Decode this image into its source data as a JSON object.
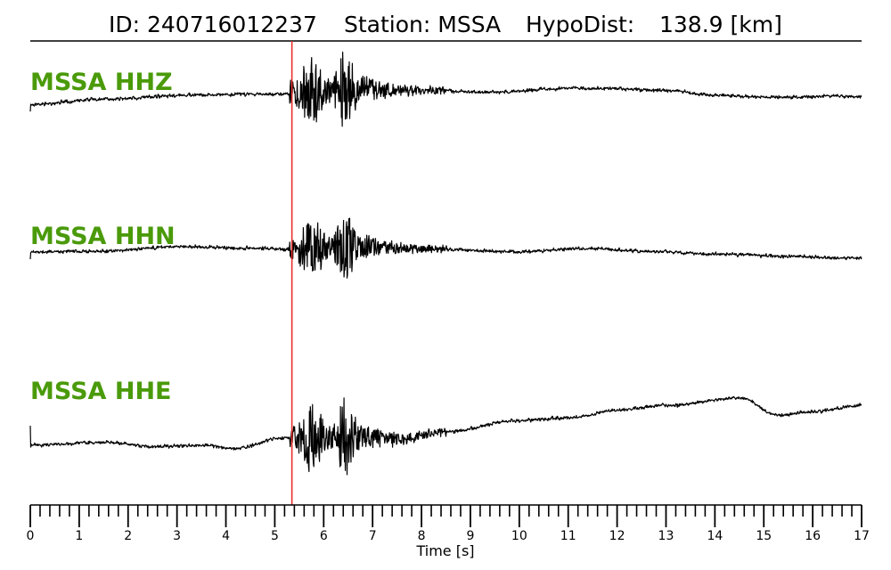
{
  "header": {
    "id_label": "ID: 240716012237",
    "station_label": "Station: MSSA",
    "hypodist_label": "HypoDist:",
    "hypodist_value": "138.9 [km]"
  },
  "chart_data": {
    "type": "line",
    "xlabel": "Time [s]",
    "xlim": [
      0,
      17
    ],
    "x_tick_labels": [
      "0",
      "1",
      "2",
      "3",
      "4",
      "5",
      "6",
      "7",
      "8",
      "9",
      "10",
      "11",
      "12",
      "13",
      "14",
      "15",
      "16",
      "17"
    ],
    "minor_tick_step": 0.2,
    "pick_time": 5.35,
    "label_color": "#4a9a0a",
    "pick_color": "#e8302a",
    "trace_color": "#000000",
    "series": [
      {
        "name": "MSSA HHZ",
        "envelope": [
          [
            0,
            0.6
          ],
          [
            1.5,
            0.1
          ],
          [
            3.5,
            -0.3
          ],
          [
            5.3,
            -0.4
          ],
          [
            5.6,
            -0.5
          ],
          [
            6.8,
            -0.8
          ],
          [
            8,
            -0.7
          ],
          [
            9.5,
            -0.55
          ],
          [
            11,
            -0.9
          ],
          [
            11.8,
            -0.9
          ],
          [
            13,
            -0.7
          ],
          [
            14,
            -0.25
          ],
          [
            15.5,
            -0.05
          ],
          [
            16.5,
            -0.2
          ],
          [
            17,
            -0.08
          ]
        ]
      },
      {
        "name": "MSSA HHN",
        "envelope": [
          [
            0,
            0.1
          ],
          [
            1.5,
            0.0
          ],
          [
            3,
            -0.5
          ],
          [
            4.5,
            -0.35
          ],
          [
            5.3,
            -0.2
          ],
          [
            6.8,
            -0.55
          ],
          [
            8,
            -0.25
          ],
          [
            10,
            0.05
          ],
          [
            11.4,
            -0.3
          ],
          [
            12.5,
            0.0
          ],
          [
            14,
            0.35
          ],
          [
            15.5,
            0.55
          ],
          [
            16.5,
            0.75
          ],
          [
            17,
            0.75
          ]
        ]
      },
      {
        "name": "MSSA HHE",
        "envelope": [
          [
            0,
            0.0
          ],
          [
            1.6,
            -0.12
          ],
          [
            2.5,
            0.05
          ],
          [
            3.5,
            0.0
          ],
          [
            4.2,
            0.12
          ],
          [
            5.2,
            -0.3
          ],
          [
            6.2,
            -0.35
          ],
          [
            7.5,
            -0.25
          ],
          [
            8.5,
            -0.55
          ],
          [
            10,
            -1.0
          ],
          [
            11,
            -1.1
          ],
          [
            12,
            -1.4
          ],
          [
            13,
            -1.6
          ],
          [
            14.5,
            -1.9
          ],
          [
            15.3,
            -1.2
          ],
          [
            16,
            -1.35
          ],
          [
            17,
            -1.6
          ]
        ]
      }
    ]
  }
}
